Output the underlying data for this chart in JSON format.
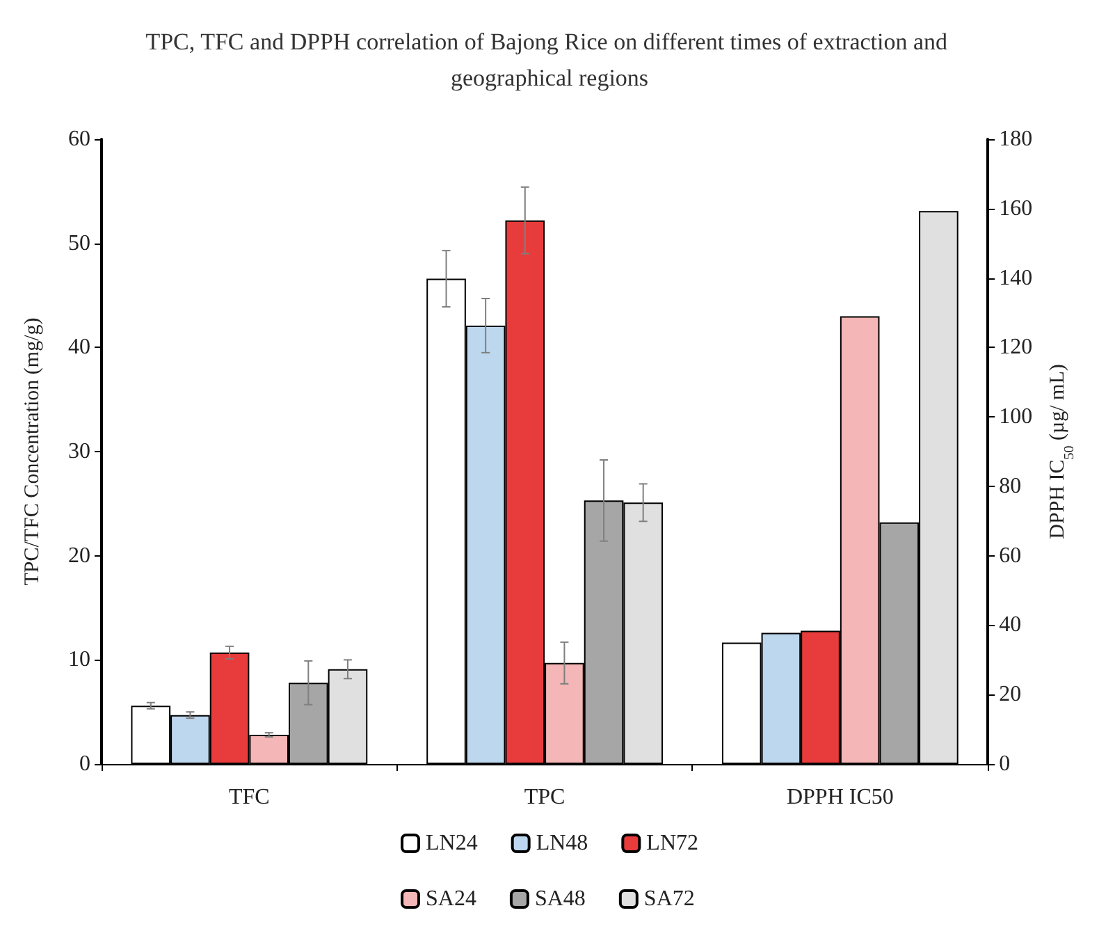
{
  "chart_data": {
    "type": "bar",
    "title": "TPC, TFC and DPPH correlation of Bajong Rice on different times of extraction and geographical regions",
    "ylabel": "TPC/TFC Concentration (mg/g)",
    "y2label": "DPPH IC$_{50}$ (µg/ mL)",
    "categories": [
      "TFC",
      "TPC",
      "DPPH IC50"
    ],
    "series": [
      {
        "name": "LN24",
        "color": "#ffffff",
        "values": [
          5.6,
          46.6,
          null
        ],
        "errors": [
          0.3,
          2.7,
          null
        ]
      },
      {
        "name": "LN48",
        "color": "#bdd7ee",
        "values": [
          4.7,
          42.1,
          null
        ],
        "errors": [
          0.3,
          2.6,
          null
        ]
      },
      {
        "name": "LN72",
        "color": "#e83c3c",
        "values": [
          10.7,
          52.2,
          null
        ],
        "errors": [
          0.6,
          3.2,
          null
        ]
      },
      {
        "name": "SA24",
        "color": "#f4b6b6",
        "values": [
          2.8,
          9.7,
          null
        ],
        "errors": [
          0.2,
          2.0,
          null
        ]
      },
      {
        "name": "SA48",
        "color": "#a6a6a6",
        "values": [
          7.8,
          25.3,
          null
        ],
        "errors": [
          2.1,
          3.9,
          null
        ]
      },
      {
        "name": "SA72",
        "color": "#e0e0e0",
        "values": [
          9.1,
          25.1,
          null
        ],
        "errors": [
          0.9,
          1.8,
          null
        ]
      },
      {
        "color": "#ffffff",
        "axis": "y2",
        "values": [
          null,
          null,
          35
        ]
      },
      {
        "color": "#bdd7ee",
        "axis": "y2",
        "values": [
          null,
          null,
          37.8
        ]
      },
      {
        "color": "#e83c3c",
        "axis": "y2",
        "values": [
          null,
          null,
          38.4
        ]
      },
      {
        "color": "#f4b6b6",
        "axis": "y2",
        "values": [
          null,
          null,
          129
        ]
      },
      {
        "color": "#a6a6a6",
        "axis": "y2",
        "values": [
          null,
          null,
          69.6
        ]
      },
      {
        "color": "#e0e0e0",
        "axis": "y2",
        "values": [
          null,
          null,
          159.3
        ]
      }
    ],
    "ylim": [
      0,
      60
    ],
    "yticks": [
      0,
      10,
      20,
      30,
      40,
      50,
      60
    ],
    "y2lim": [
      0,
      180
    ],
    "y2ticks": [
      0,
      20,
      40,
      60,
      80,
      100,
      120,
      140,
      160,
      180
    ],
    "grid": false,
    "legend": "bottom"
  }
}
